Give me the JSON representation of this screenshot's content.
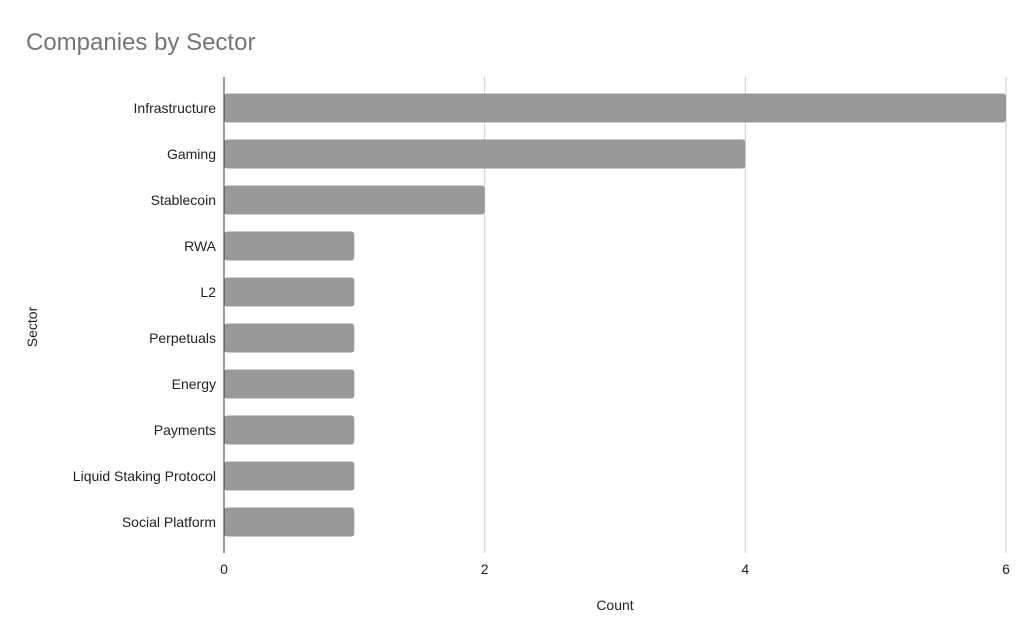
{
  "chart_data": {
    "type": "bar",
    "orientation": "horizontal",
    "title": "Companies by Sector",
    "xlabel": "Count",
    "ylabel": "Sector",
    "categories": [
      "Infrastructure",
      "Gaming",
      "Stablecoin",
      "RWA",
      "L2",
      "Perpetuals",
      "Energy",
      "Payments",
      "Liquid Staking Protocol",
      "Social Platform"
    ],
    "values": [
      6,
      4,
      2,
      1,
      1,
      1,
      1,
      1,
      1,
      1
    ],
    "xlim": [
      0,
      6
    ],
    "xticks": [
      "0",
      "2",
      "4",
      "6"
    ],
    "grid": true,
    "legend": "none",
    "bar_color": "#999999"
  }
}
